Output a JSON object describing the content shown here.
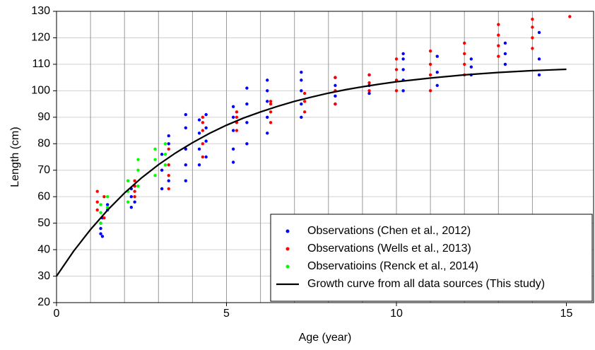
{
  "chart_data": {
    "type": "scatter",
    "xlabel": "Age (year)",
    "ylabel": "Length (cm)",
    "xlim": [
      0,
      15.8
    ],
    "ylim": [
      20,
      130
    ],
    "xticks": [
      0,
      5,
      10,
      15
    ],
    "yticks": [
      20,
      30,
      40,
      50,
      60,
      70,
      80,
      90,
      100,
      110,
      120,
      130
    ],
    "age_lines": [
      1,
      2,
      3,
      4,
      5,
      6,
      7,
      8,
      9,
      10,
      11,
      12,
      13,
      14
    ],
    "grid": true,
    "legend": "lower right",
    "series": [
      {
        "name": "Observations (Chen et al., 2012)",
        "color": "#0000ff",
        "kind": "points",
        "x": [
          1.3,
          1.3,
          1.3,
          1.35,
          1.35,
          1.5,
          1.5,
          2.2,
          2.2,
          2.2,
          2.3,
          2.3,
          3.1,
          3.1,
          3.1,
          3.3,
          3.3,
          3.3,
          3.8,
          3.8,
          3.8,
          3.8,
          3.8,
          4.2,
          4.2,
          4.2,
          4.2,
          4.4,
          4.4,
          4.4,
          4.4,
          5.2,
          5.2,
          5.2,
          5.2,
          5.2,
          5.6,
          5.6,
          5.6,
          5.6,
          6.2,
          6.2,
          6.2,
          6.2,
          6.2,
          7.2,
          7.2,
          7.2,
          7.2,
          7.2,
          8.2,
          8.2,
          8.2,
          8.2,
          9.2,
          9.2,
          9.2,
          10.2,
          10.2,
          10.2,
          10.2,
          10.2,
          11.2,
          11.2,
          11.2,
          12.2,
          12.2,
          12.2,
          13.2,
          13.2,
          13.2,
          14.2,
          14.2,
          14.2
        ],
        "values": [
          46,
          48,
          50,
          45,
          52,
          55,
          57,
          56,
          60,
          63,
          58,
          64,
          63,
          70,
          76,
          66,
          80,
          83,
          66,
          72,
          78,
          86,
          91,
          72,
          78,
          84,
          89,
          75,
          81,
          86,
          91,
          73,
          78,
          85,
          90,
          94,
          80,
          88,
          95,
          101,
          84,
          90,
          96,
          100,
          104,
          90,
          95,
          100,
          104,
          107,
          95,
          98,
          102,
          105,
          99,
          102,
          106,
          100,
          104,
          108,
          112,
          114,
          102,
          107,
          113,
          106,
          109,
          112,
          110,
          114,
          118,
          106,
          112,
          122
        ]
      },
      {
        "name": "Observations (Wells et al., 2013)",
        "color": "#ff0000",
        "kind": "points",
        "x": [
          1.2,
          1.2,
          1.2,
          1.4,
          1.4,
          2.3,
          2.3,
          2.3,
          2.3,
          3.3,
          3.3,
          3.3,
          3.3,
          4.3,
          4.3,
          4.3,
          4.3,
          4.3,
          5.3,
          5.3,
          5.3,
          5.3,
          6.3,
          6.3,
          6.3,
          6.3,
          7.3,
          7.3,
          7.3,
          8.2,
          8.2,
          8.2,
          9.2,
          9.2,
          9.2,
          10,
          10,
          10,
          10,
          11,
          11,
          11,
          11,
          12,
          12,
          12,
          12,
          13,
          13,
          13,
          13,
          14,
          14,
          14,
          14,
          15.1
        ],
        "values": [
          55,
          58,
          62,
          52,
          60,
          60,
          62,
          64,
          66,
          63,
          68,
          72,
          78,
          75,
          80,
          85,
          88,
          90,
          85,
          88,
          90,
          92,
          88,
          92,
          95,
          96,
          92,
          96,
          99,
          95,
          100,
          105,
          100,
          103,
          106,
          100,
          104,
          108,
          112,
          100,
          106,
          110,
          115,
          106,
          110,
          114,
          118,
          113,
          117,
          121,
          125,
          116,
          120,
          124,
          127,
          128
        ]
      },
      {
        "name": "Observatioins (Renck et al., 2014)",
        "color": "#00ff00",
        "kind": "points",
        "x": [
          1.3,
          1.3,
          1.3,
          1.5,
          1.5,
          2.1,
          2.1,
          2.1,
          2.4,
          2.4,
          2.4,
          2.9,
          2.9,
          2.9,
          3.2,
          3.2,
          3.2
        ],
        "values": [
          50,
          54,
          57,
          56,
          60,
          58,
          62,
          66,
          64,
          70,
          74,
          68,
          74,
          78,
          72,
          76,
          80
        ]
      },
      {
        "name": "Growth curve from all data sources (This study)",
        "color": "#000000",
        "kind": "line",
        "x": [
          0,
          0.5,
          1,
          1.5,
          2,
          2.5,
          3,
          3.5,
          4,
          4.5,
          5,
          5.5,
          6,
          6.5,
          7,
          7.5,
          8,
          8.5,
          9,
          9.5,
          10,
          11,
          12,
          13,
          14,
          15
        ],
        "values": [
          30,
          39.4,
          47.6,
          54.9,
          61.4,
          67.1,
          72.1,
          76.5,
          80.4,
          83.9,
          87.0,
          89.7,
          92.0,
          94.1,
          96.0,
          97.6,
          99.1,
          100.4,
          101.5,
          102.5,
          103.4,
          104.8,
          106.0,
          106.9,
          107.6,
          108.1
        ]
      }
    ]
  }
}
